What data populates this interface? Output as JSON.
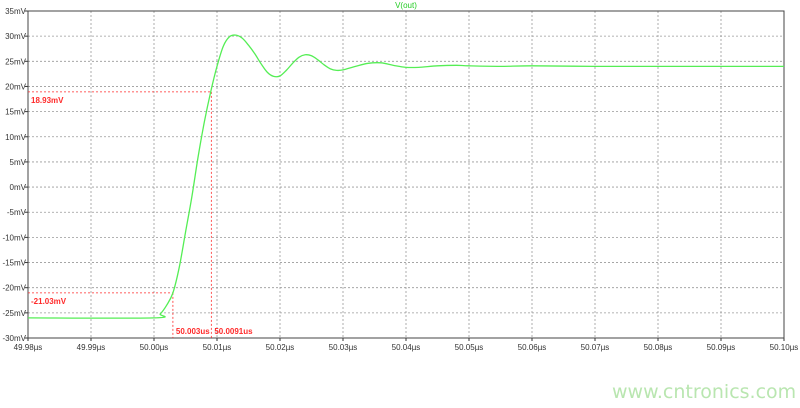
{
  "chart_data": {
    "type": "line",
    "title": "V(out)",
    "xlabel": "",
    "ylabel": "",
    "xlim": [
      49.98,
      50.1
    ],
    "ylim": [
      -30,
      35
    ],
    "grid": true,
    "x_ticks": [
      "49.98µs",
      "49.99µs",
      "50.00µs",
      "50.01µs",
      "50.02µs",
      "50.03µs",
      "50.04µs",
      "50.05µs",
      "50.06µs",
      "50.07µs",
      "50.08µs",
      "50.09µs",
      "50.10µs"
    ],
    "y_ticks": [
      "35mV",
      "30mV",
      "25mV",
      "20mV",
      "15mV",
      "10mV",
      "5mV",
      "0mV",
      "-5mV",
      "-10mV",
      "-15mV",
      "-20mV",
      "-25mV",
      "-30mV"
    ],
    "series": [
      {
        "color": "#55ee55",
        "x": [
          49.98,
          50.0,
          50.001,
          50.002,
          50.003,
          50.004,
          50.005,
          50.006,
          50.007,
          50.008,
          50.009,
          50.01,
          50.011,
          50.012,
          50.013,
          50.014,
          50.015,
          50.016,
          50.017,
          50.018,
          50.019,
          50.02,
          50.021,
          50.022,
          50.023,
          50.024,
          50.025,
          50.026,
          50.027,
          50.028,
          50.029,
          50.03,
          50.032,
          50.034,
          50.036,
          50.038,
          50.04,
          50.042,
          50.045,
          50.048,
          50.05,
          50.055,
          50.06,
          50.07,
          50.08,
          50.09,
          50.1
        ],
        "y": [
          -26,
          -26,
          -25.2,
          -23.5,
          -21.03,
          -16,
          -9,
          -2,
          6,
          13,
          18.93,
          24,
          28,
          29.9,
          30.2,
          29.6,
          28.2,
          26.5,
          24.5,
          22.8,
          22.0,
          22.1,
          23.2,
          24.6,
          25.8,
          26.3,
          26.1,
          25.3,
          24.3,
          23.5,
          23.2,
          23.3,
          24.0,
          24.6,
          24.7,
          24.2,
          23.8,
          23.8,
          24.1,
          24.2,
          24.1,
          24.0,
          24.1,
          24.0,
          24.0,
          24.0,
          24.0
        ]
      }
    ],
    "cursors": [
      {
        "x": 50.003,
        "y": -21.03,
        "x_label": "50.003us",
        "y_label": "-21.03mV"
      },
      {
        "x": 50.0091,
        "y": 18.93,
        "x_label": "50.0091us",
        "y_label": "18.93mV"
      }
    ],
    "cursor_color": "#ff2a2a"
  },
  "watermark": "www.cntronics.com"
}
